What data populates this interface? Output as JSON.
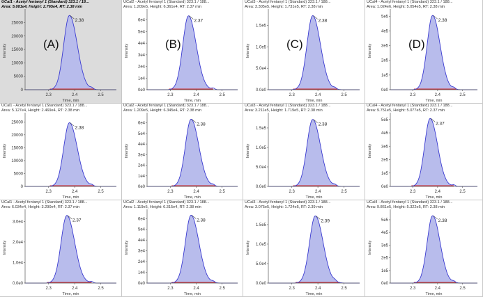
{
  "panels": [
    {
      "row": 0,
      "col": 0,
      "selected": true,
      "label": "(A)",
      "title": "UCal1 - Acetyl fentanyl 1 (Standard) 323.1 / 18...",
      "stats": "Area: 5.081e4, Height: 2.765e4, RT: 2.38 min",
      "rt_label": "2.38",
      "rt": 2.38,
      "ymax": 27650,
      "yticks": [
        "0",
        "5000",
        "10000",
        "15000",
        "20000",
        "25000"
      ],
      "yvals": [
        0,
        5000,
        10000,
        15000,
        20000,
        25000
      ],
      "yrange": [
        0,
        29000
      ]
    },
    {
      "row": 0,
      "col": 1,
      "label": "(B)",
      "title": "UCal2 - Acetyl fentanyl 1 (Standard) 323.1 / 188...",
      "stats": "Area: 1.209e5, Height: 6.361e4, RT: 2.37 min",
      "rt_label": "2.37",
      "rt": 2.37,
      "ymax": 63610,
      "yticks": [
        "0e0",
        "1e4",
        "2e4",
        "3e4",
        "4e4",
        "5e4",
        "6e4"
      ],
      "yvals": [
        0,
        10000,
        20000,
        30000,
        40000,
        50000,
        60000
      ],
      "yrange": [
        0,
        67000
      ]
    },
    {
      "row": 0,
      "col": 2,
      "label": "(C)",
      "title": "UCal3 - Acetyl fentanyl 1 (Standard) 323.1 / 188...",
      "stats": "Area: 3.305e5, Height: 1.731e5, RT: 2.38 min",
      "rt_label": "2.38",
      "rt": 2.38,
      "ymax": 173100,
      "yticks": [
        "0.0e0",
        "5.0e4",
        "1.0e5",
        "1.5e5"
      ],
      "yvals": [
        0,
        50000,
        100000,
        150000
      ],
      "yrange": [
        0,
        182000
      ]
    },
    {
      "row": 0,
      "col": 3,
      "label": "(D)",
      "title": "UCal4 - Acetyl fentanyl 1 (Standard) 323.1 / 188...",
      "stats": "Area: 1.024e6, Height: 5.054e5, RT: 2.38 min",
      "rt_label": "2.38",
      "rt": 2.38,
      "ymax": 505400,
      "yticks": [
        "0e0",
        "1e5",
        "2e5",
        "3e5",
        "4e5",
        "5e5"
      ],
      "yvals": [
        0,
        100000,
        200000,
        300000,
        400000,
        500000
      ],
      "yrange": [
        0,
        530000
      ]
    },
    {
      "row": 1,
      "col": 0,
      "label": "",
      "title": "UCal1 - Acetyl fentanyl 1 (Standard) 323.1 / 188...",
      "stats": "Area: 5.127e4, Height: 2.469e4, RT: 2.38 min",
      "rt_label": "2.38",
      "rt": 2.38,
      "ymax": 24690,
      "yticks": [
        "0",
        "5000",
        "10000",
        "15000",
        "20000",
        "25000"
      ],
      "yvals": [
        0,
        5000,
        10000,
        15000,
        20000,
        25000
      ],
      "yrange": [
        0,
        27500
      ]
    },
    {
      "row": 1,
      "col": 1,
      "label": "",
      "title": "UCal2 - Acetyl fentanyl 1 (Standard) 323.1 / 188...",
      "stats": "Area: 1.209e5, Height: 6.345e4, RT: 2.38 min",
      "rt_label": "2.38",
      "rt": 2.38,
      "ymax": 63450,
      "yticks": [
        "0e0",
        "1e4",
        "2e4",
        "3e4",
        "4e4",
        "5e4",
        "6e4"
      ],
      "yvals": [
        0,
        10000,
        20000,
        30000,
        40000,
        50000,
        60000
      ],
      "yrange": [
        0,
        67000
      ]
    },
    {
      "row": 1,
      "col": 2,
      "label": "",
      "title": "UCal3 - Acetyl fentanyl 1 (Standard) 323.1 / 188...",
      "stats": "Area: 3.211e5, Height: 1.719e5, RT: 2.38 min",
      "rt_label": "2.38",
      "rt": 2.38,
      "ymax": 171900,
      "yticks": [
        "0.0e0",
        "5.0e4",
        "1.0e5",
        "1.5e5"
      ],
      "yvals": [
        0,
        50000,
        100000,
        150000
      ],
      "yrange": [
        0,
        182000
      ]
    },
    {
      "row": 1,
      "col": 3,
      "label": "",
      "title": "UCal4 - Acetyl fentanyl 1 (Standard) 323.1 / 188...",
      "stats": "Area: 9.751e5, Height: 5.077e5, RT: 2.37 min",
      "rt_label": "2.37",
      "rt": 2.37,
      "ymax": 507700,
      "yticks": [
        "0e0",
        "1e5",
        "2e5",
        "3e5",
        "4e5",
        "5e5"
      ],
      "yvals": [
        0,
        100000,
        200000,
        300000,
        400000,
        500000
      ],
      "yrange": [
        0,
        530000
      ]
    },
    {
      "row": 2,
      "col": 0,
      "label": "",
      "title": "UCal1 - Acetyl fentanyl 1 (Standard) 323.1 / 188...",
      "stats": "Area: 6.034e4, Height: 3.290e4, RT: 2.37 min",
      "rt_label": "2.37",
      "rt": 2.37,
      "ymax": 32900,
      "yticks": [
        "0.0e0",
        "1.0e4",
        "2.0e4",
        "3.0e4"
      ],
      "yvals": [
        0,
        10000,
        20000,
        30000
      ],
      "yrange": [
        0,
        34500
      ]
    },
    {
      "row": 2,
      "col": 1,
      "label": "",
      "title": "UCal2 - Acetyl fentanyl 1 (Standard) 323.1 / 188...",
      "stats": "Area: 1.119e5, Height: 6.315e4, RT: 2.38 min",
      "rt_label": "2.38",
      "rt": 2.38,
      "ymax": 63150,
      "yticks": [
        "0e0",
        "1e4",
        "2e4",
        "3e4",
        "4e4",
        "5e4",
        "6e4"
      ],
      "yvals": [
        0,
        10000,
        20000,
        30000,
        40000,
        50000,
        60000
      ],
      "yrange": [
        0,
        66000
      ]
    },
    {
      "row": 2,
      "col": 2,
      "label": "",
      "title": "UCal3 - Acetyl fentanyl 1 (Standard) 323.1 / 188...",
      "stats": "Area: 3.075e5, Height: 1.724e5, RT: 2.39 min",
      "rt_label": "2.39",
      "rt": 2.39,
      "ymax": 172400,
      "yticks": [
        "0.0e0",
        "5.0e4",
        "1.0e5",
        "1.5e5"
      ],
      "yvals": [
        0,
        50000,
        100000,
        150000
      ],
      "yrange": [
        0,
        182000
      ]
    },
    {
      "row": 2,
      "col": 3,
      "label": "",
      "title": "UCal4 - Acetyl fentanyl 1 (Standard) 323.1 / 188...",
      "stats": "Area: 9.861e5, Height: 5.322e5, RT: 2.38 min",
      "rt_label": "2.38",
      "rt": 2.38,
      "ymax": 532200,
      "yticks": [
        "0e0",
        "1e5",
        "2e5",
        "3e5",
        "4e5",
        "5e5"
      ],
      "yvals": [
        0,
        100000,
        200000,
        300000,
        400000,
        500000
      ],
      "yrange": [
        0,
        560000
      ]
    }
  ],
  "xaxis": {
    "label": "Time, min",
    "ticks": [
      "2.3",
      "2.4",
      "2.5"
    ],
    "tickvals": [
      2.3,
      2.4,
      2.5
    ],
    "range": [
      2.21,
      2.56
    ]
  },
  "yaxis_label": "Intensity",
  "colors": {
    "peak_line": "#3a3ad0",
    "peak_fill": "#b8bcec",
    "baseline": "#d02020",
    "axis": "#555555"
  }
}
